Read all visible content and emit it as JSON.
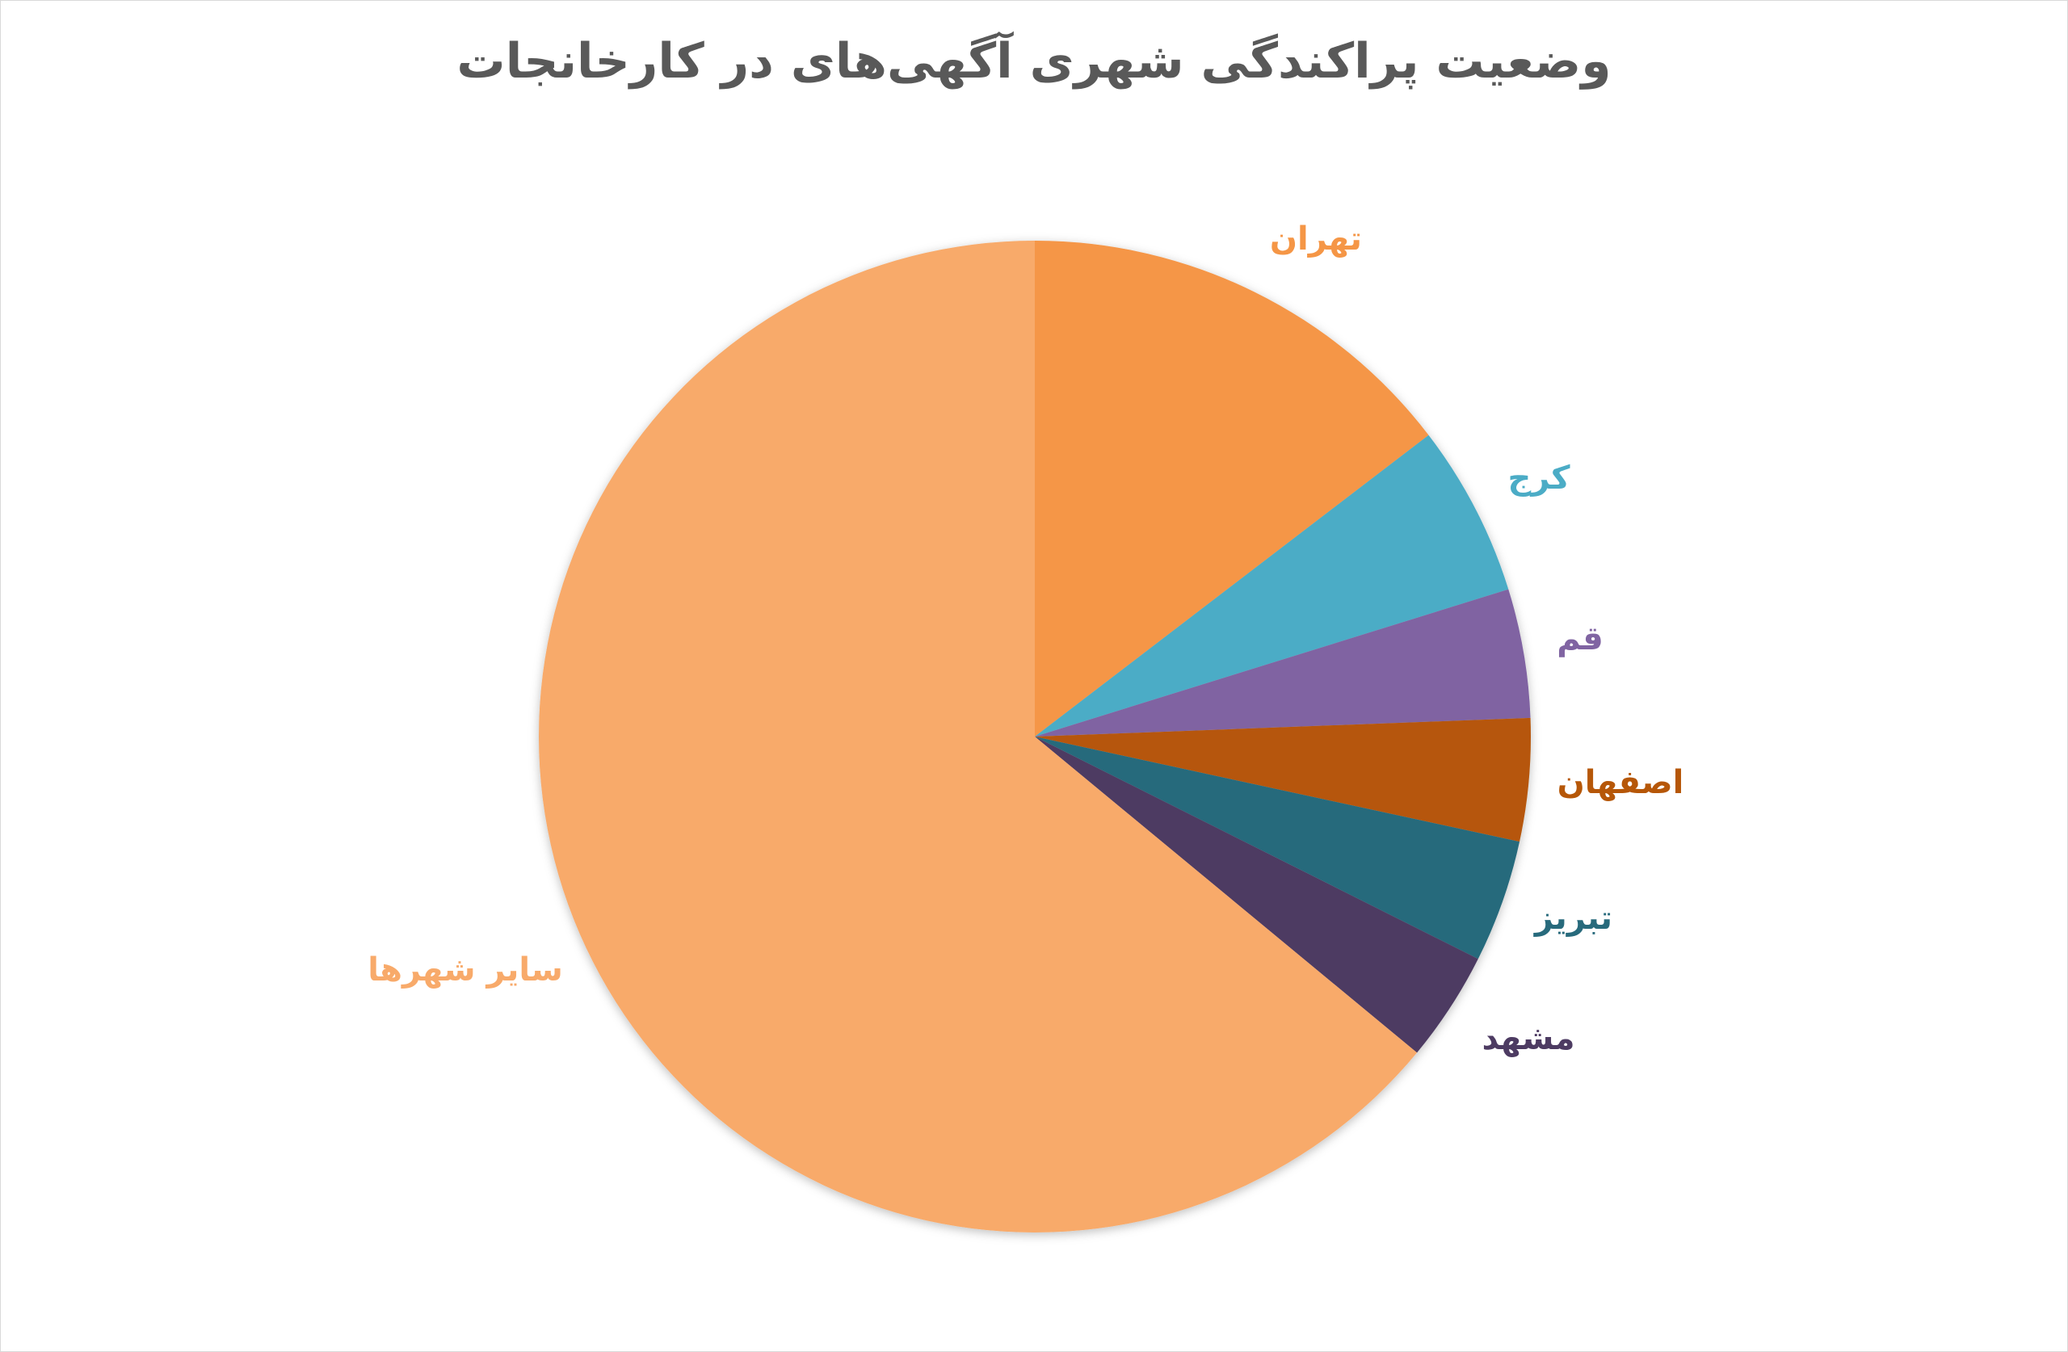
{
  "chart_data": {
    "type": "pie",
    "title": "وضعیت پراکندگی شهری آگهی‌های در کارخانجات",
    "start_angle": "12 o'clock, clockwise",
    "legend": "none (data labels show category names)",
    "categories": [
      "تهران",
      "کرج",
      "قم",
      "اصفهان",
      "تبریز",
      "مشهد",
      "سایر شهرها"
    ],
    "values": [
      14.6,
      5.6,
      4.2,
      4.0,
      4.0,
      3.6,
      64.0
    ],
    "unit": "percent (estimated)",
    "colors": [
      "#F59646",
      "#4BACC6",
      "#8064A2",
      "#B65708",
      "#276A7C",
      "#4D3B62",
      "#F8AA6A"
    ]
  }
}
